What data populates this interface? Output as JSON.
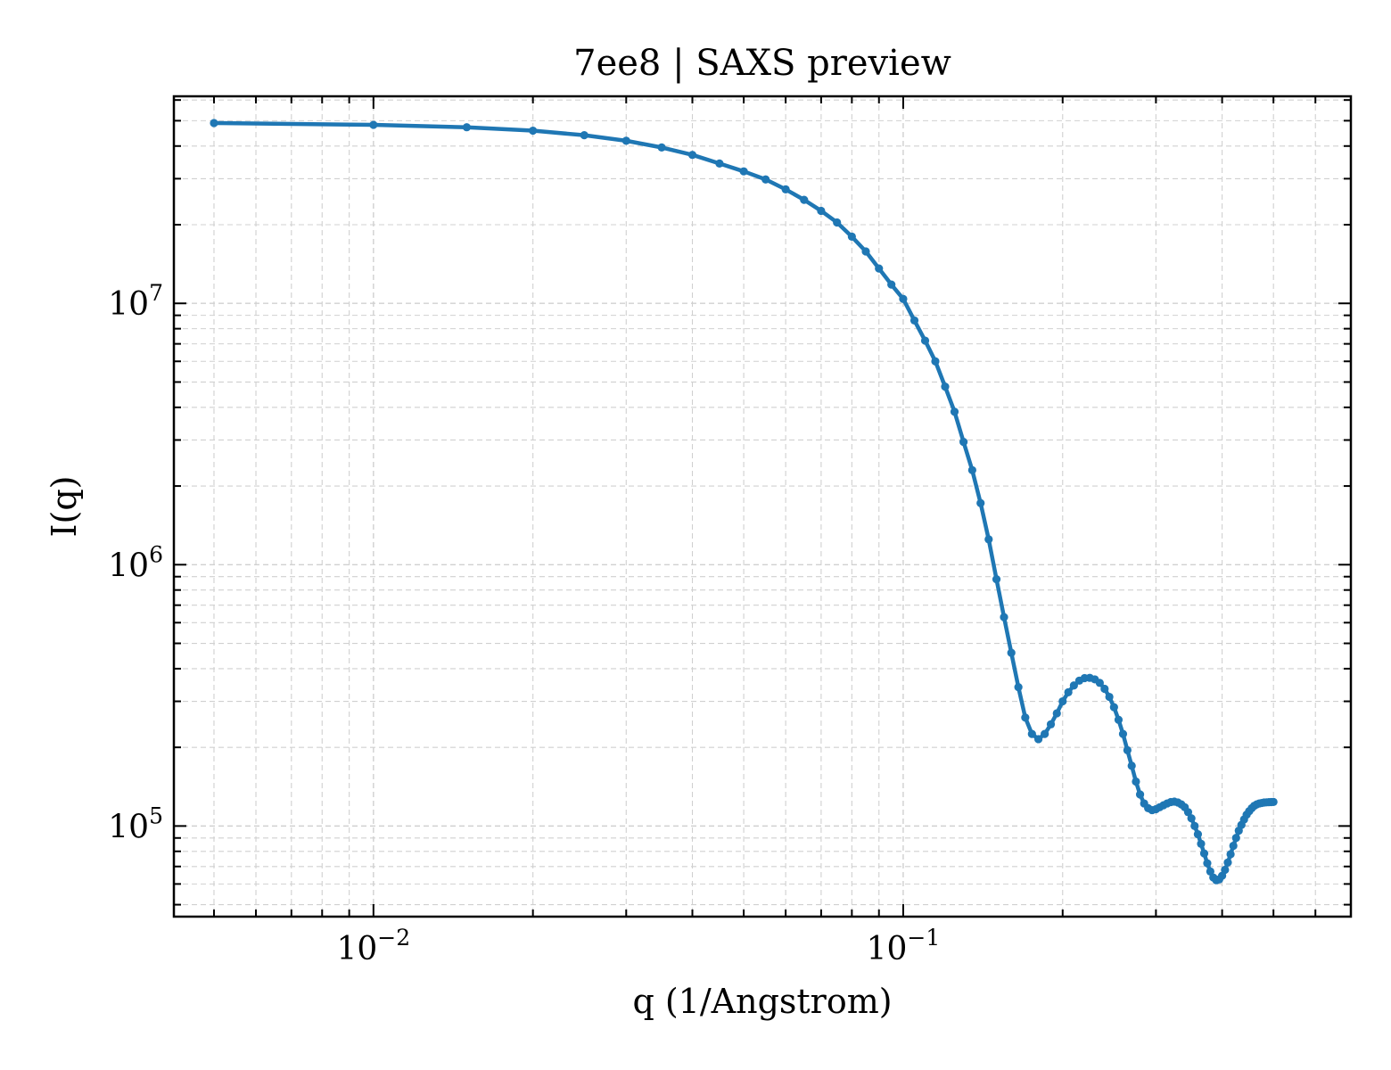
{
  "chart_data": {
    "type": "line",
    "title": "7ee8 | SAXS preview",
    "xlabel": "q (1/Angstrom)",
    "ylabel": "I(q)",
    "xscale": "log",
    "yscale": "log",
    "xlim": [
      0.0042,
      0.7
    ],
    "ylim": [
      45000,
      62000000
    ],
    "grid": true,
    "legend": "none",
    "x_ticks": [
      {
        "value": 0.01,
        "base": "10",
        "exp": "−2"
      },
      {
        "value": 0.1,
        "base": "10",
        "exp": "−1"
      }
    ],
    "y_ticks": [
      {
        "value": 100000,
        "base": "10",
        "exp": "5"
      },
      {
        "value": 1000000,
        "base": "10",
        "exp": "6"
      },
      {
        "value": 10000000,
        "base": "10",
        "exp": "7"
      }
    ],
    "colors": {
      "series": "#1f77b4",
      "grid": "#d0d0d0",
      "axes": "#000000"
    },
    "series": [
      {
        "x": [
          0.005,
          0.01,
          0.015,
          0.02,
          0.025,
          0.03,
          0.035,
          0.04,
          0.045,
          0.05,
          0.055,
          0.06,
          0.065,
          0.07,
          0.075,
          0.08,
          0.085,
          0.09,
          0.095,
          0.1,
          0.105,
          0.11,
          0.115,
          0.12,
          0.125,
          0.13,
          0.135,
          0.14,
          0.145,
          0.15,
          0.155,
          0.16,
          0.165,
          0.17,
          0.175,
          0.18,
          0.185,
          0.19,
          0.195,
          0.2,
          0.205,
          0.21,
          0.215,
          0.22,
          0.225,
          0.23,
          0.235,
          0.24,
          0.245,
          0.25,
          0.255,
          0.26,
          0.265,
          0.27,
          0.275,
          0.28,
          0.285,
          0.29,
          0.295,
          0.3,
          0.305,
          0.31,
          0.315,
          0.32,
          0.325,
          0.33,
          0.335,
          0.34,
          0.345,
          0.35,
          0.355,
          0.36,
          0.365,
          0.37,
          0.375,
          0.38,
          0.385,
          0.39,
          0.395,
          0.4,
          0.405,
          0.41,
          0.415,
          0.42,
          0.425,
          0.43,
          0.435,
          0.44,
          0.445,
          0.45,
          0.455,
          0.46,
          0.465,
          0.47,
          0.475,
          0.48,
          0.485,
          0.49,
          0.495,
          0.5
        ],
        "y": [
          49000000,
          48200000,
          47200000,
          45800000,
          44000000,
          41900000,
          39500000,
          37000000,
          34300000,
          32000000,
          29800000,
          27300000,
          24900000,
          22600000,
          20400000,
          18000000,
          15800000,
          13600000,
          11800000,
          10400000,
          8600000,
          7200000,
          6000000,
          4800000,
          3850000,
          2950000,
          2300000,
          1720000,
          1250000,
          880000,
          630000,
          460000,
          340000,
          260000,
          225000,
          215000,
          225000,
          245000,
          270000,
          300000,
          325000,
          345000,
          360000,
          368000,
          369000,
          364000,
          353000,
          335000,
          312000,
          285000,
          255000,
          225000,
          195000,
          170000,
          148000,
          132000,
          122000,
          117000,
          115000,
          116000,
          118000,
          120000,
          122000,
          123500,
          124000,
          123000,
          121000,
          118000,
          113000,
          107000,
          100000,
          93000,
          85500,
          78500,
          72000,
          67000,
          63500,
          62000,
          62500,
          64500,
          68000,
          72500,
          78000,
          84000,
          90000,
          96000,
          101000,
          106000,
          110500,
          114000,
          117000,
          119500,
          121000,
          122000,
          122500,
          123000,
          123200,
          123400,
          123500,
          123600
        ]
      }
    ]
  }
}
